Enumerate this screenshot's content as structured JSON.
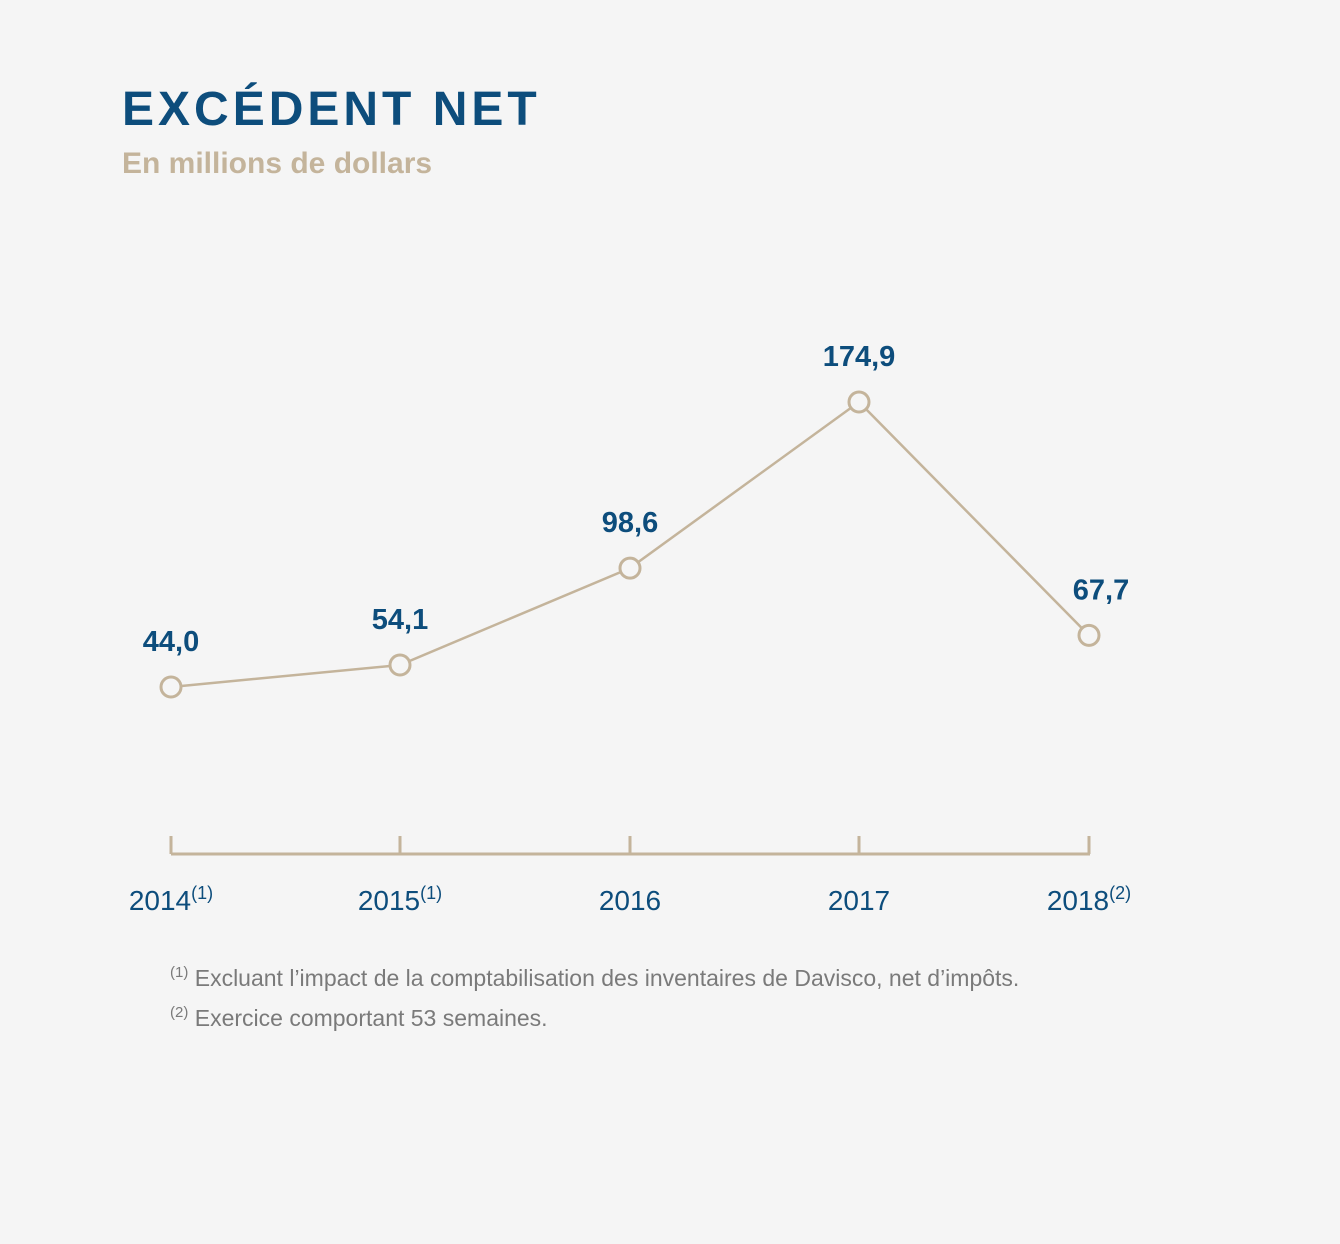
{
  "chart_data": {
    "type": "line",
    "title": "EXCÉDENT NET",
    "subtitle": "En millions de dollars",
    "categories": [
      "2014",
      "2015",
      "2016",
      "2017",
      "2018"
    ],
    "category_notes": [
      "(1)",
      "(1)",
      "",
      "",
      "(2)"
    ],
    "series": [
      {
        "values": [
          44.0,
          54.1,
          98.6,
          174.9,
          67.7
        ],
        "labels": [
          "44,0",
          "54,1",
          "98,6",
          "174,9",
          "67,7"
        ]
      }
    ],
    "y_axis_visible": false,
    "grid": false,
    "colors": {
      "line": "#c4b49b",
      "marker_fill": "#f5f5f5",
      "axis": "#c4b49b",
      "value_label": "#0d4d7c",
      "tick_label": "#0d4d7c",
      "title": "#0d4d7c",
      "subtitle": "#c4b49b"
    }
  },
  "footnotes": [
    {
      "marker": "(1)",
      "text": "Excluant l’impact de la comptabilisation des inventaires de Davisco, net d’impôts."
    },
    {
      "marker": "(2)",
      "text": "Exercice comportant 53 semaines."
    }
  ]
}
